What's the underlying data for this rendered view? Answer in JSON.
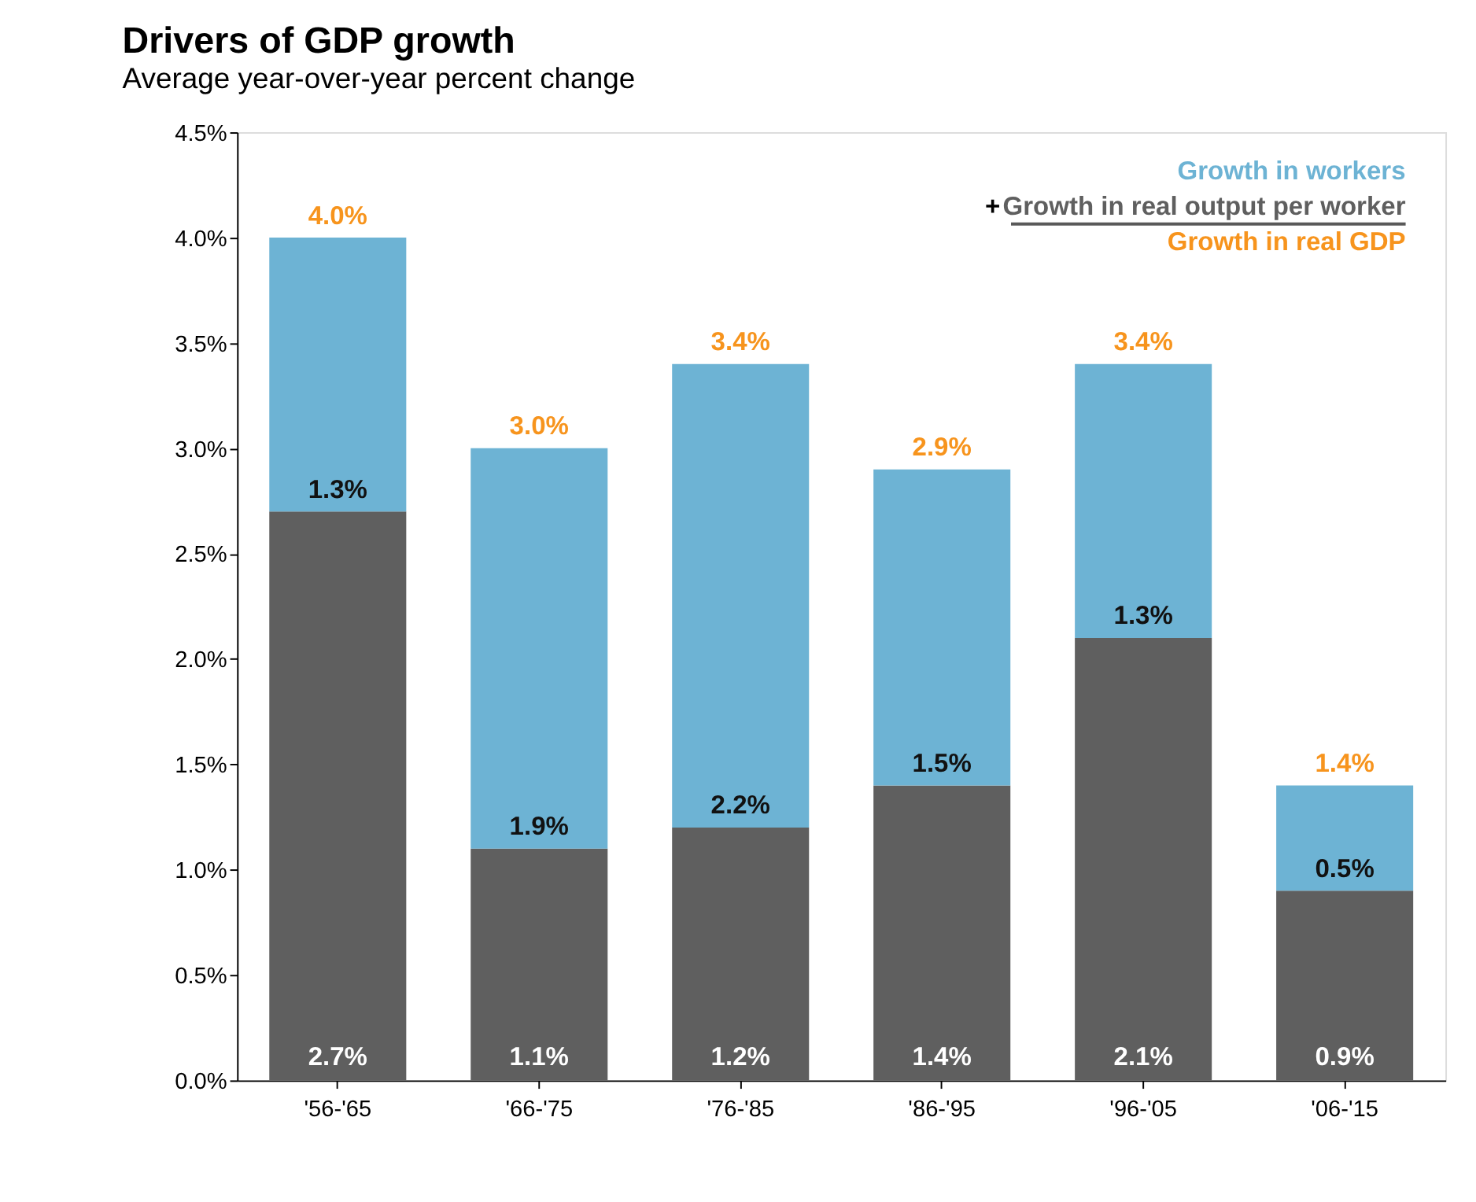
{
  "chart_data": {
    "type": "bar",
    "title": "Drivers of GDP growth",
    "subtitle": "Average year-over-year percent change",
    "categories": [
      "'56-'65",
      "'66-'75",
      "'76-'85",
      "'86-'95",
      "'96-'05",
      "'06-'15"
    ],
    "stacked": true,
    "series": [
      {
        "name": "Growth in real output per worker",
        "color": "#5f5f5f",
        "values": [
          2.7,
          1.1,
          1.2,
          1.4,
          2.1,
          0.9
        ],
        "value_labels": [
          "2.7%",
          "1.1%",
          "1.2%",
          "1.4%",
          "2.1%",
          "0.9%"
        ]
      },
      {
        "name": "Growth in workers",
        "color": "#6db3d4",
        "values": [
          1.3,
          1.9,
          2.2,
          1.5,
          1.3,
          0.5
        ],
        "value_labels": [
          "1.3%",
          "1.9%",
          "2.2%",
          "1.5%",
          "1.3%",
          "0.5%"
        ]
      }
    ],
    "totals": [
      "4.0%",
      "3.0%",
      "3.4%",
      "2.9%",
      "3.4%",
      "1.4%"
    ],
    "ylim": [
      0,
      4.5
    ],
    "yticks": [
      {
        "value": 0,
        "label": "0.0%"
      },
      {
        "value": 0.5,
        "label": "0.5%"
      },
      {
        "value": 1,
        "label": "1.0%"
      },
      {
        "value": 1.5,
        "label": "1.5%"
      },
      {
        "value": 2,
        "label": "2.0%"
      },
      {
        "value": 2.5,
        "label": "2.5%"
      },
      {
        "value": 3,
        "label": "3.0%"
      },
      {
        "value": 3.5,
        "label": "3.5%"
      },
      {
        "value": 4,
        "label": "4.0%"
      },
      {
        "value": 4.5,
        "label": "4.5%"
      }
    ],
    "annotations": [
      "+",
      "Growth in real GDP"
    ],
    "legend": "top right",
    "grid": false
  }
}
